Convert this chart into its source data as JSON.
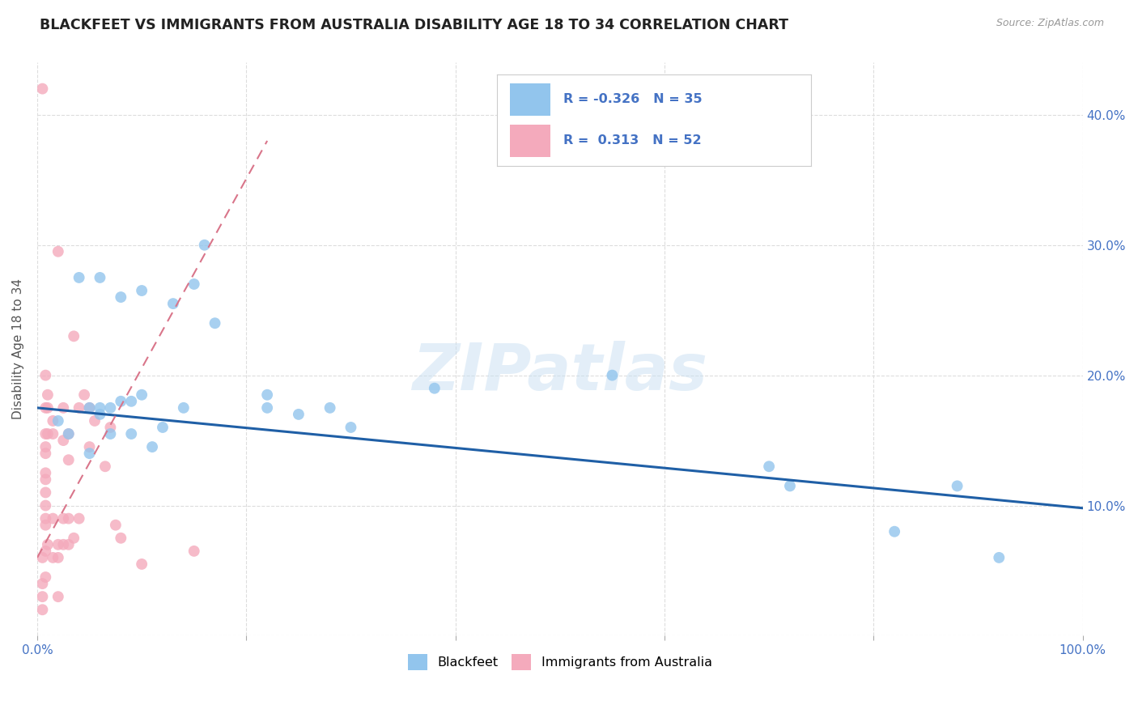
{
  "title": "BLACKFEET VS IMMIGRANTS FROM AUSTRALIA DISABILITY AGE 18 TO 34 CORRELATION CHART",
  "source": "Source: ZipAtlas.com",
  "ylabel": "Disability Age 18 to 34",
  "watermark": "ZIPatlas",
  "xlim": [
    0,
    1.0
  ],
  "ylim": [
    0,
    0.44
  ],
  "legend_r_blue": "-0.326",
  "legend_n_blue": "35",
  "legend_r_pink": "0.313",
  "legend_n_pink": "52",
  "blue_color": "#92C5ED",
  "pink_color": "#F4AABC",
  "trend_blue_color": "#1F5FA6",
  "trend_pink_color": "#D9758A",
  "background_color": "#FFFFFF",
  "grid_color": "#DDDDDD",
  "blue_scatter_x": [
    0.02,
    0.03,
    0.04,
    0.05,
    0.05,
    0.06,
    0.06,
    0.06,
    0.07,
    0.07,
    0.08,
    0.08,
    0.09,
    0.09,
    0.1,
    0.1,
    0.11,
    0.12,
    0.13,
    0.14,
    0.15,
    0.16,
    0.17,
    0.22,
    0.22,
    0.25,
    0.28,
    0.3,
    0.38,
    0.55,
    0.7,
    0.72,
    0.82,
    0.88,
    0.92
  ],
  "blue_scatter_y": [
    0.165,
    0.155,
    0.275,
    0.175,
    0.14,
    0.17,
    0.175,
    0.275,
    0.155,
    0.175,
    0.26,
    0.18,
    0.18,
    0.155,
    0.185,
    0.265,
    0.145,
    0.16,
    0.255,
    0.175,
    0.27,
    0.3,
    0.24,
    0.175,
    0.185,
    0.17,
    0.175,
    0.16,
    0.19,
    0.2,
    0.13,
    0.115,
    0.08,
    0.115,
    0.06
  ],
  "pink_scatter_x": [
    0.005,
    0.005,
    0.005,
    0.005,
    0.005,
    0.008,
    0.008,
    0.008,
    0.008,
    0.008,
    0.008,
    0.008,
    0.008,
    0.008,
    0.008,
    0.008,
    0.008,
    0.008,
    0.01,
    0.01,
    0.01,
    0.01,
    0.015,
    0.015,
    0.015,
    0.015,
    0.02,
    0.02,
    0.02,
    0.02,
    0.025,
    0.025,
    0.025,
    0.025,
    0.03,
    0.03,
    0.03,
    0.03,
    0.035,
    0.035,
    0.04,
    0.04,
    0.045,
    0.05,
    0.05,
    0.055,
    0.065,
    0.07,
    0.075,
    0.08,
    0.1,
    0.15
  ],
  "pink_scatter_y": [
    0.42,
    0.06,
    0.04,
    0.03,
    0.02,
    0.2,
    0.175,
    0.155,
    0.145,
    0.14,
    0.125,
    0.12,
    0.11,
    0.1,
    0.09,
    0.085,
    0.065,
    0.045,
    0.185,
    0.175,
    0.155,
    0.07,
    0.165,
    0.155,
    0.09,
    0.06,
    0.295,
    0.07,
    0.06,
    0.03,
    0.175,
    0.15,
    0.09,
    0.07,
    0.155,
    0.09,
    0.07,
    0.135,
    0.23,
    0.075,
    0.175,
    0.09,
    0.185,
    0.175,
    0.145,
    0.165,
    0.13,
    0.16,
    0.085,
    0.075,
    0.055,
    0.065
  ],
  "blue_trend_x0": 0.0,
  "blue_trend_y0": 0.175,
  "blue_trend_x1": 1.0,
  "blue_trend_y1": 0.098,
  "pink_trend_x0": 0.0,
  "pink_trend_y0": 0.06,
  "pink_trend_x1": 0.22,
  "pink_trend_y1": 0.38
}
